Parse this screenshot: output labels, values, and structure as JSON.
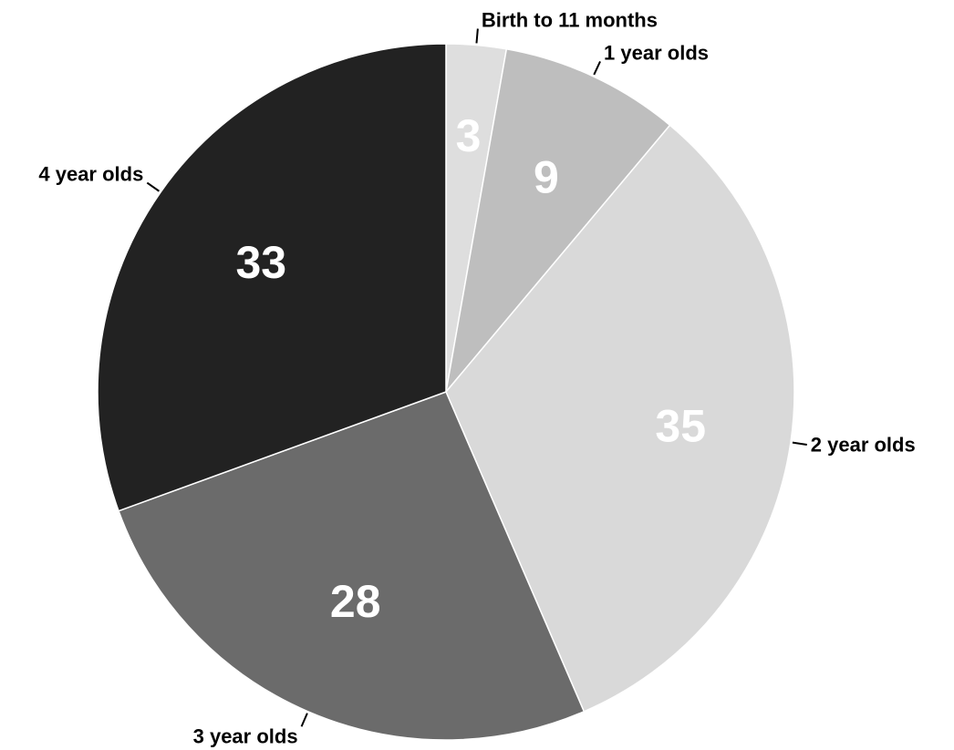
{
  "chart_data": {
    "type": "pie",
    "title": "",
    "start": "top",
    "direction": "clockwise",
    "slices": [
      {
        "label": "Birth to 11 months",
        "value": 3,
        "display": "3",
        "color": "#dedede"
      },
      {
        "label": "1 year olds",
        "value": 9,
        "display": "9",
        "color": "#bebebe"
      },
      {
        "label": "2 year olds",
        "value": 35,
        "display": "35",
        "color": "#d9d9d9"
      },
      {
        "label": "3 year olds",
        "value": 28,
        "display": "28",
        "color": "#6b6b6b"
      },
      {
        "label": "4 year olds",
        "value": 33,
        "display": "33",
        "color": "#222222"
      }
    ]
  }
}
